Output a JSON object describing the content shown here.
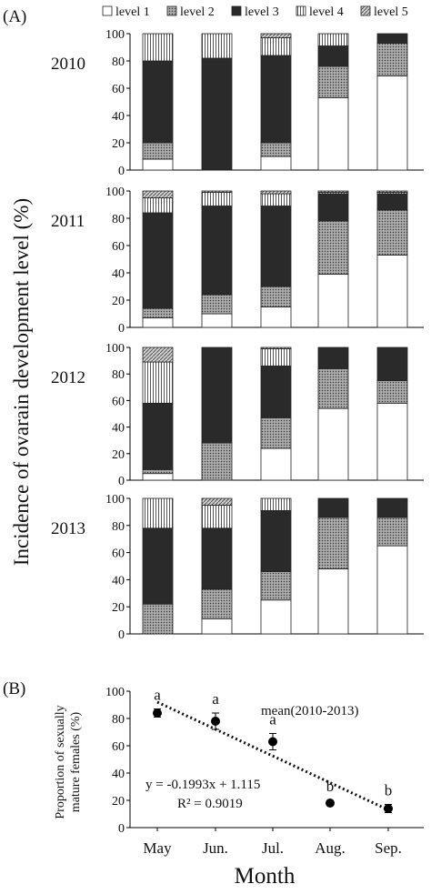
{
  "panel_a_label": "(A)",
  "panel_b_label": "(B)",
  "chart_data": [
    {
      "type": "bar",
      "stacked": true,
      "panel": "A",
      "ylabel": "Incidence of ovarain development level (%)",
      "ylim": [
        0,
        100
      ],
      "yticks": [
        "0",
        "20",
        "40",
        "60",
        "80",
        "100"
      ],
      "categories": [
        "May",
        "Jun.",
        "Jul.",
        "Aug.",
        "Sep."
      ],
      "legend": {
        "placement": "top",
        "entries": [
          {
            "name": "level 1",
            "fill": "#ffffff"
          },
          {
            "name": "level 2",
            "fill": "#8c8c8c"
          },
          {
            "name": "level 3",
            "fill": "#2a2a2a"
          },
          {
            "name": "level 4",
            "fill": "vertical-lines"
          },
          {
            "name": "level 5",
            "fill": "#b4b4b4"
          }
        ]
      },
      "subplots": [
        {
          "year": "2010",
          "stacks": [
            [
              8,
              12,
              60,
              20,
              0
            ],
            [
              0,
              0,
              82,
              18,
              0
            ],
            [
              10,
              10,
              64,
              13,
              3
            ],
            [
              53,
              23,
              15,
              9,
              0
            ],
            [
              69,
              24,
              7,
              0,
              0
            ]
          ]
        },
        {
          "year": "2011",
          "stacks": [
            [
              7,
              7,
              70,
              11,
              5
            ],
            [
              10,
              14,
              65,
              10,
              1
            ],
            [
              15,
              15,
              59,
              9,
              2
            ],
            [
              39,
              39,
              20,
              1,
              1
            ],
            [
              53,
              33,
              12,
              1,
              1
            ]
          ]
        },
        {
          "year": "2012",
          "stacks": [
            [
              5,
              3,
              50,
              31,
              11
            ],
            [
              0,
              28,
              72,
              0,
              0
            ],
            [
              24,
              23,
              39,
              13,
              1
            ],
            [
              54,
              30,
              16,
              0,
              0
            ],
            [
              58,
              17,
              25,
              0,
              0
            ]
          ]
        },
        {
          "year": "2013",
          "stacks": [
            [
              0,
              22,
              56,
              22,
              0
            ],
            [
              11,
              22,
              45,
              17,
              5
            ],
            [
              25,
              21,
              45,
              9,
              0
            ],
            [
              48,
              38,
              14,
              0,
              0
            ],
            [
              65,
              21,
              14,
              0,
              0
            ]
          ]
        }
      ]
    },
    {
      "type": "scatter",
      "panel": "B",
      "title": "mean(2010-2013)",
      "xlabel": "Month",
      "ylabel": "Proportion of sexually mature females (%)",
      "ylim": [
        0,
        100
      ],
      "yticks": [
        "0",
        "20",
        "40",
        "60",
        "80",
        "100"
      ],
      "categories": [
        "May",
        "Jun.",
        "Jul.",
        "Aug.",
        "Sep."
      ],
      "values": [
        84,
        78,
        63,
        18,
        14
      ],
      "errors": [
        3,
        6,
        6,
        0,
        3
      ],
      "letters": [
        "a",
        "a",
        "a",
        "b",
        "b"
      ],
      "trendline": {
        "style": "dotted",
        "start": 92,
        "end": 13
      },
      "equation": "y = -0.1993x + 1.115",
      "r2": "R² = 0.9019"
    }
  ]
}
